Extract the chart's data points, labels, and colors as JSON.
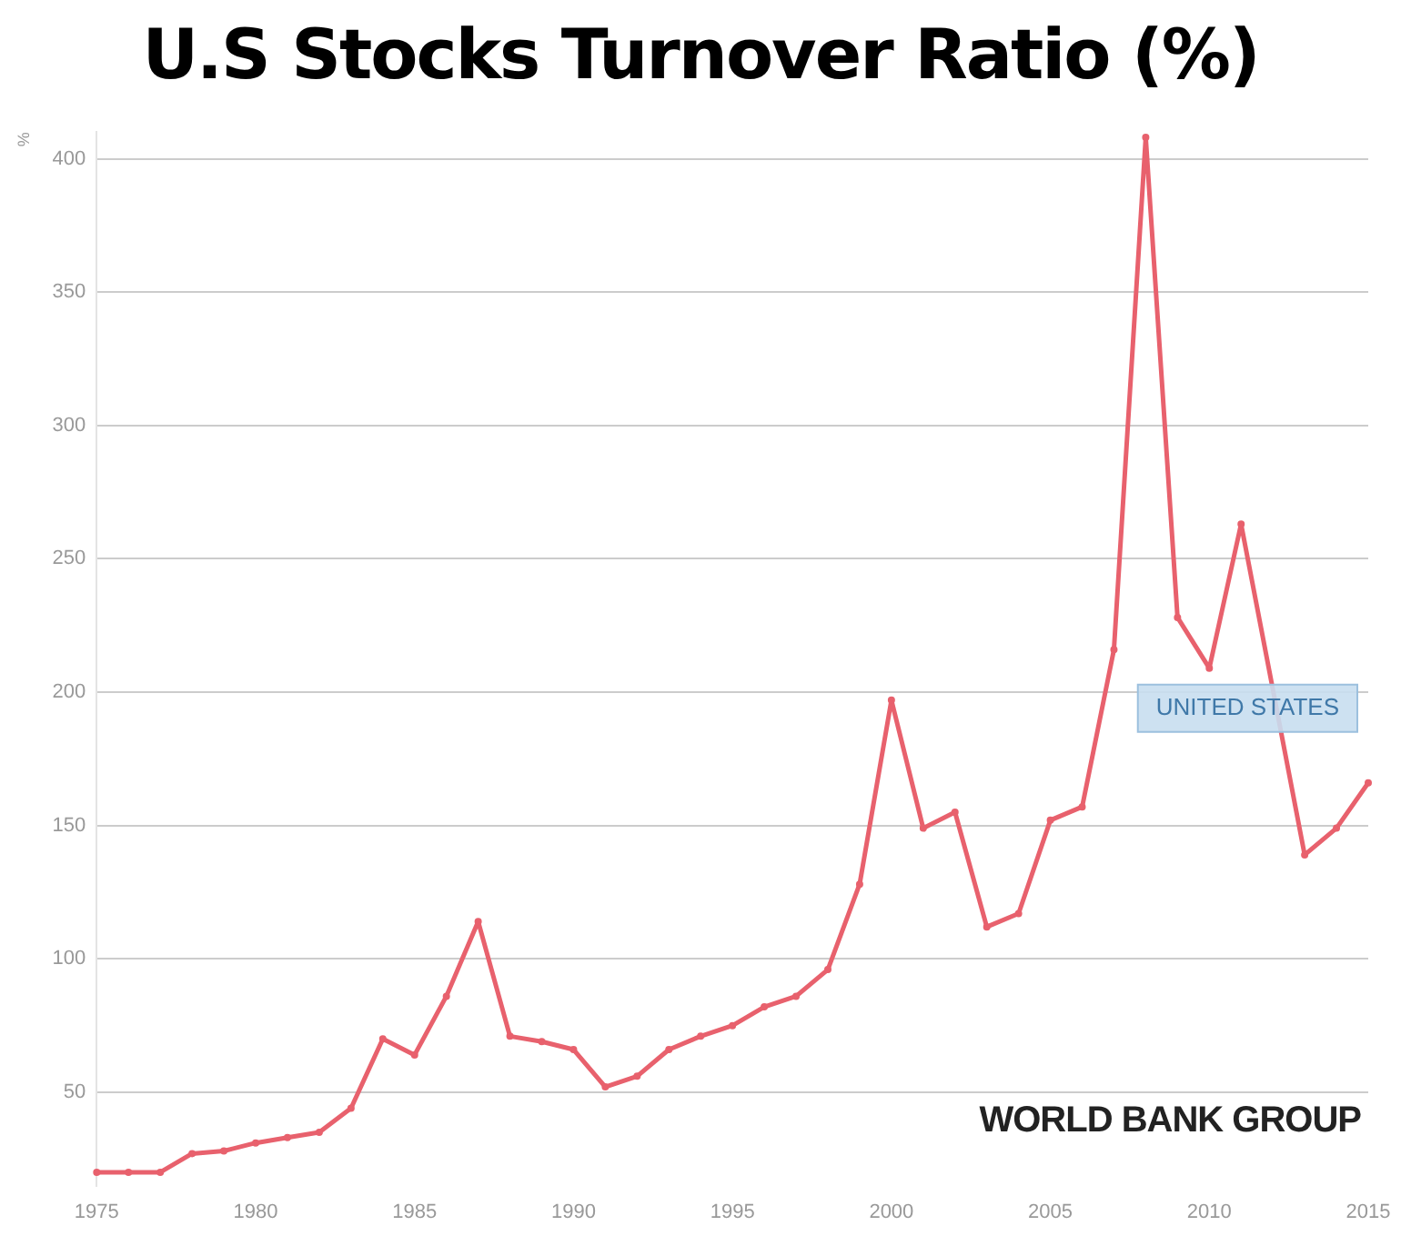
{
  "chart_data": {
    "type": "line",
    "title": "U.S Stocks Turnover Ratio (%)",
    "ylabel": "%",
    "x": [
      1975,
      1976,
      1977,
      1978,
      1979,
      1980,
      1981,
      1982,
      1983,
      1984,
      1985,
      1986,
      1987,
      1988,
      1989,
      1990,
      1991,
      1992,
      1993,
      1994,
      1995,
      1996,
      1997,
      1998,
      1999,
      2000,
      2001,
      2002,
      2003,
      2004,
      2005,
      2006,
      2007,
      2008,
      2009,
      2010,
      2011,
      2012,
      2013,
      2014,
      2015
    ],
    "series": [
      {
        "name": "UNITED STATES",
        "color": "#e8616d",
        "values": [
          20,
          20,
          20,
          27,
          28,
          31,
          33,
          35,
          44,
          70,
          64,
          86,
          114,
          71,
          69,
          66,
          52,
          56,
          66,
          71,
          75,
          82,
          86,
          96,
          128,
          197,
          149,
          155,
          112,
          117,
          152,
          157,
          216,
          408,
          228,
          209,
          263,
          null,
          139,
          149,
          166
        ]
      }
    ],
    "xlim": [
      1975,
      2015
    ],
    "xticks": [
      1975,
      1980,
      1985,
      1990,
      1995,
      2000,
      2005,
      2010,
      2015
    ],
    "ylim": [
      15,
      410
    ],
    "yticks": [
      50,
      100,
      150,
      200,
      250,
      300,
      350,
      400
    ],
    "grid": "y",
    "legend": false,
    "marker": "circle",
    "line_style": "solid",
    "annotations": [
      "WORLD BANK GROUP"
    ]
  }
}
